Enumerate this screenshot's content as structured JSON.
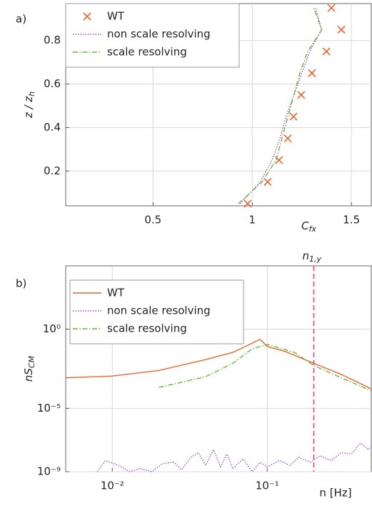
{
  "chart_data": [
    {
      "type": "line",
      "panel_label": "a)",
      "xlabel": "C",
      "xlabel_sub": "fx",
      "ylabel": "z / z",
      "ylabel_sub": "h",
      "xlim": [
        0.06,
        1.6
      ],
      "ylim": [
        0.04,
        0.97
      ],
      "xticks": [
        0.5,
        1,
        1.5
      ],
      "yticks": [
        0.2,
        0.4,
        0.6,
        0.8
      ],
      "grid": true,
      "log_x": false,
      "log_y": false,
      "legend": "upper left",
      "series": [
        {
          "name": "WT",
          "color": "#e8642c",
          "style": "marker",
          "x": [
            1.399,
            1.449,
            1.374,
            1.301,
            1.247,
            1.208,
            1.179,
            1.135,
            1.078,
            0.977
          ],
          "y": [
            0.95,
            0.85,
            0.75,
            0.65,
            0.55,
            0.45,
            0.35,
            0.25,
            0.15,
            0.05
          ]
        },
        {
          "name": "non scale resolving",
          "color": "#9b4fc6",
          "style": "dotted",
          "x": [
            0.94,
            1.04,
            1.1,
            1.14,
            1.17,
            1.21,
            1.25,
            1.29,
            1.35,
            1.32
          ],
          "y": [
            0.05,
            0.15,
            0.25,
            0.35,
            0.45,
            0.55,
            0.65,
            0.75,
            0.85,
            0.95
          ]
        },
        {
          "name": "scale resolving",
          "color": "#6bb33a",
          "style": "dashdot",
          "x": [
            0.93,
            1.05,
            1.12,
            1.15,
            1.18,
            1.21,
            1.24,
            1.28,
            1.35,
            1.31
          ],
          "y": [
            0.05,
            0.15,
            0.25,
            0.35,
            0.45,
            0.55,
            0.65,
            0.75,
            0.85,
            0.95
          ]
        }
      ]
    },
    {
      "type": "line",
      "panel_label": "b)",
      "xlabel": "n [Hz]",
      "ylabel": "nS",
      "ylabel_sub": "CM",
      "xlim": [
        0.005,
        0.47
      ],
      "ylim": [
        1e-09,
        10000.0
      ],
      "xticks": [
        {
          "value": 0.01,
          "label": "10⁻²"
        },
        {
          "value": 0.1,
          "label": "10⁻¹"
        }
      ],
      "yticks": [
        {
          "value": 1e-09,
          "label": "10⁻⁹"
        },
        {
          "value": 1e-05,
          "label": "10⁻⁵"
        },
        {
          "value": 1,
          "label": "10⁰"
        }
      ],
      "grid": true,
      "log_x": true,
      "log_y": true,
      "legend": "upper left",
      "vline": {
        "x": 0.2,
        "color": "#ff4f7b",
        "label": "n",
        "label_sub": "1,y"
      },
      "series": [
        {
          "name": "WT",
          "color": "#e8642c",
          "style": "solid",
          "x": [
            0.005,
            0.01,
            0.02,
            0.04,
            0.06,
            0.08,
            0.09,
            0.1,
            0.13,
            0.2,
            0.3,
            0.47
          ],
          "y": [
            0.00085,
            0.0011,
            0.0025,
            0.012,
            0.034,
            0.13,
            0.23,
            0.08,
            0.04,
            0.007,
            0.0014,
            0.00017
          ]
        },
        {
          "name": "non scale resolving",
          "color": "#9b4fc6",
          "style": "dotted",
          "x": [
            0.008,
            0.009,
            0.011,
            0.013,
            0.015,
            0.018,
            0.021,
            0.025,
            0.028,
            0.032,
            0.036,
            0.04,
            0.045,
            0.05,
            0.055,
            0.06,
            0.07,
            0.08,
            0.09,
            0.1,
            0.12,
            0.14,
            0.16,
            0.19,
            0.22,
            0.26,
            0.3,
            0.35,
            0.4,
            0.45,
            0.47
          ],
          "y": [
            1e-09,
            5e-09,
            2.5e-09,
            1e-09,
            1.6e-09,
            1e-09,
            3.2e-09,
            4e-09,
            1.3e-09,
            8e-09,
            1.6e-08,
            2.5e-09,
            2.5e-08,
            2e-09,
            1.3e-08,
            1.6e-09,
            6.3e-09,
            1e-09,
            4e-09,
            2e-09,
            5e-09,
            2.5e-09,
            8e-09,
            4e-09,
            1e-08,
            5e-09,
            1.6e-08,
            1.3e-08,
            6.3e-08,
            2.5e-08,
            4e-08
          ]
        },
        {
          "name": "scale resolving",
          "color": "#6bb33a",
          "style": "dashdot",
          "x": [
            0.02,
            0.04,
            0.06,
            0.08,
            0.1,
            0.15,
            0.2,
            0.3,
            0.47
          ],
          "y": [
            0.00021,
            0.001,
            0.007,
            0.058,
            0.11,
            0.034,
            0.005,
            0.00085,
            0.00013
          ]
        }
      ]
    }
  ]
}
